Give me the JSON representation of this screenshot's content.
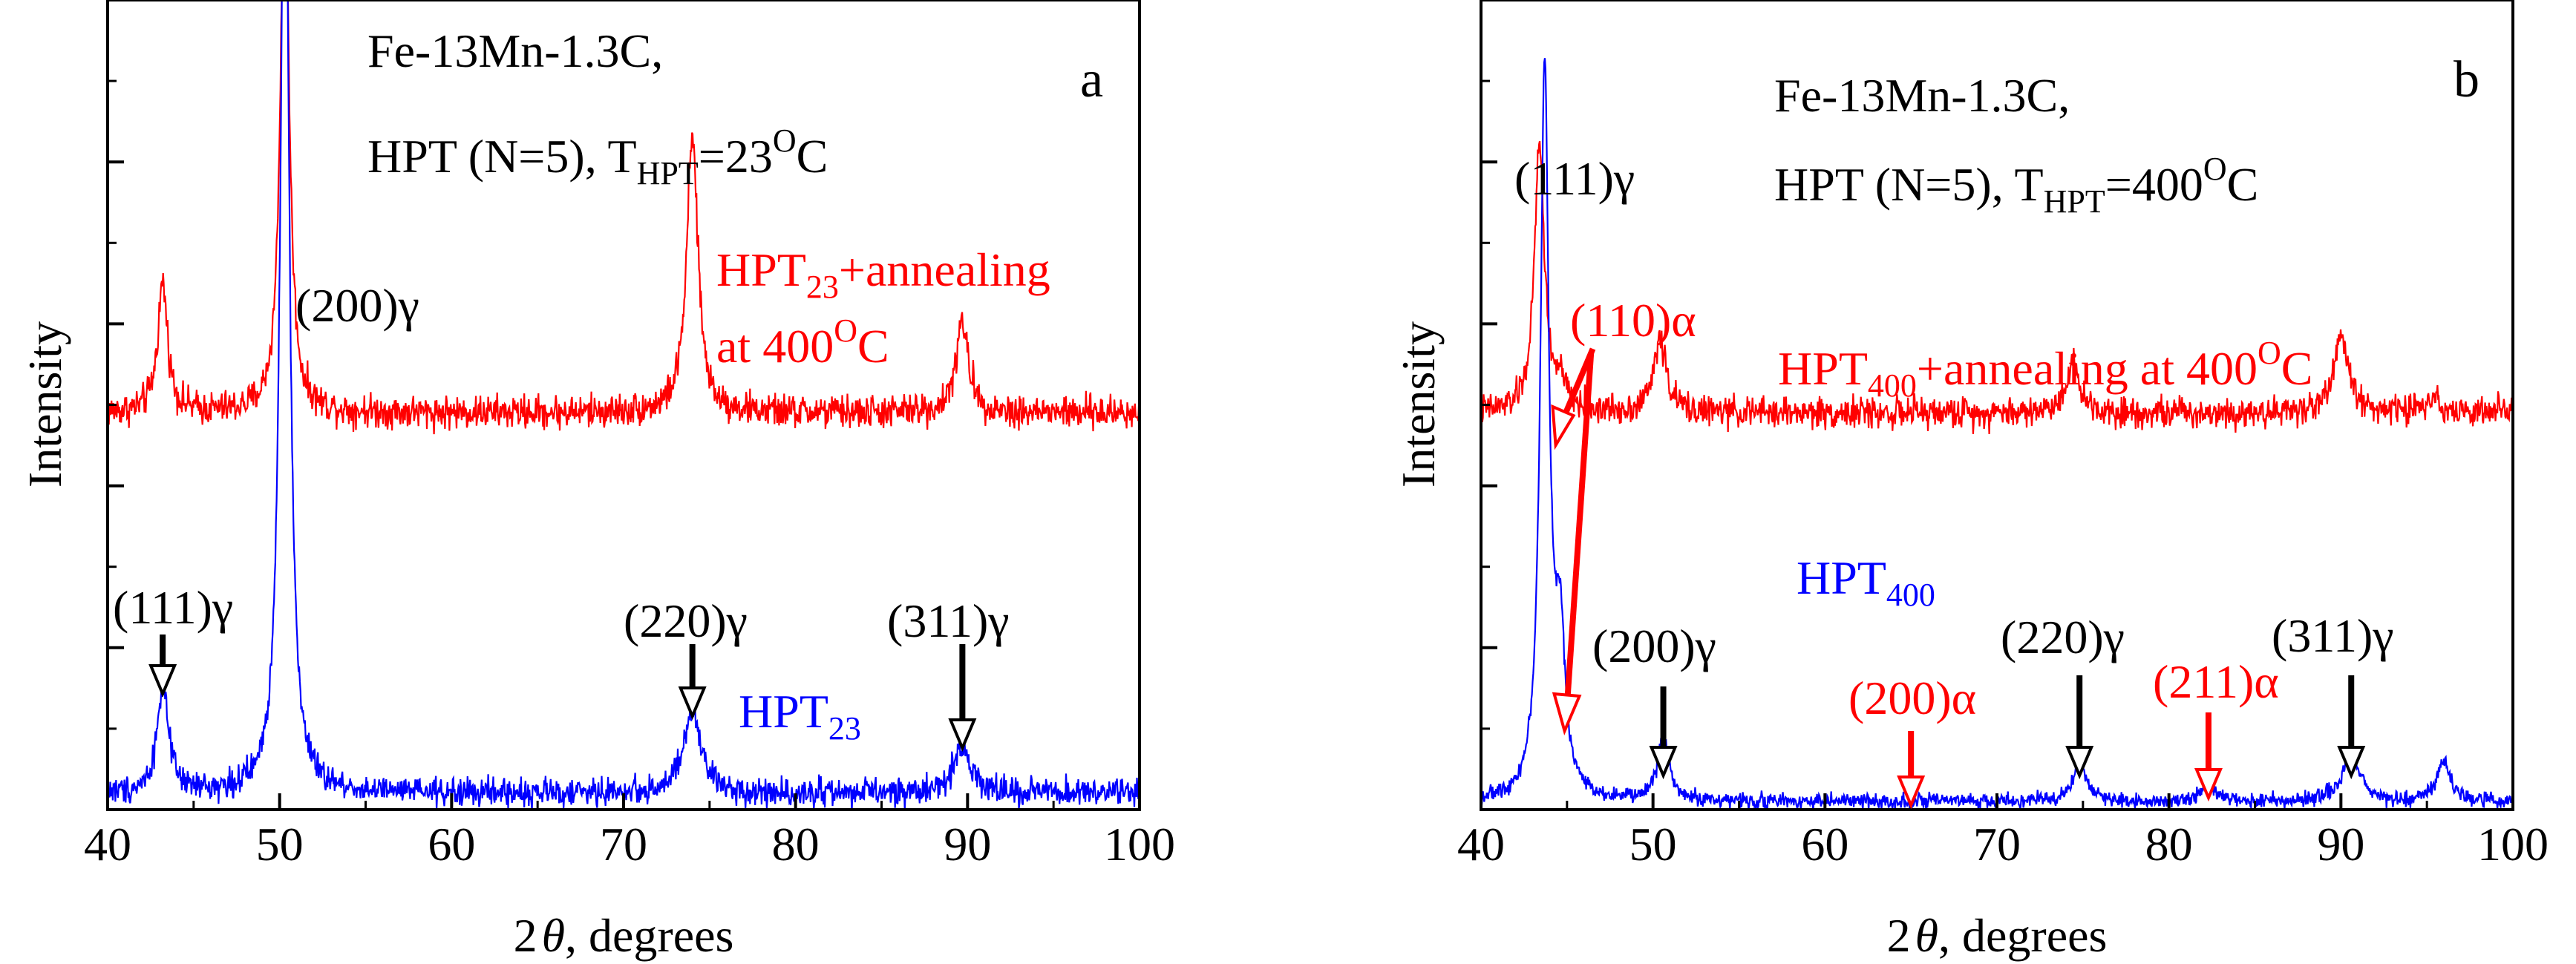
{
  "chart_data": [
    {
      "type": "line",
      "panel_label": "a",
      "xlabel_pre": "2",
      "xlabel_theta": "θ",
      "xlabel_post": ", degrees",
      "ylabel": "Intensity",
      "xlim": [
        40,
        100
      ],
      "ylim": [
        0,
        100
      ],
      "x_ticks": [
        40,
        50,
        60,
        70,
        80,
        90,
        100
      ],
      "title_line1": "Fe-13Mn-1.3C,",
      "title_line2": {
        "pre": "HPT (N=5), T",
        "sub": "HPT",
        "mid": "=23",
        "sup": "O",
        "post": "C"
      },
      "colors": {
        "annealed": "#ff0000",
        "as_hpt": "#0000ff",
        "text": "#000000"
      },
      "series": [
        {
          "name": "HPT23+annealing at 400°C",
          "color": "#ff0000",
          "baseline": 49,
          "noise": 1.3,
          "peaks": [
            {
              "x": 43.2,
              "height": 16,
              "width": 0.35
            },
            {
              "x": 50.3,
              "height": 70,
              "width": 0.3
            },
            {
              "x": 74.0,
              "height": 34,
              "width": 0.4
            },
            {
              "x": 89.7,
              "height": 11,
              "width": 0.45
            }
          ],
          "label": {
            "line1_pre": "HPT",
            "line1_sub": "23",
            "line1_post": "+annealing",
            "line2_pre": "at 400",
            "line2_sup": "O",
            "line2_post": "C"
          }
        },
        {
          "name": "HPT23",
          "color": "#0000ff",
          "baseline": 2,
          "noise": 1.1,
          "peaks": [
            {
              "x": 43.2,
              "height": 13,
              "width": 0.4
            },
            {
              "x": 50.3,
              "height": 130,
              "width": 0.3
            },
            {
              "x": 74.0,
              "height": 10,
              "width": 0.6
            },
            {
              "x": 89.7,
              "height": 6,
              "width": 0.6
            }
          ],
          "label": {
            "pre": "HPT",
            "sub": "23"
          }
        }
      ],
      "annotations": [
        {
          "text": "(111)γ",
          "x": 43.2,
          "color": "#000000"
        },
        {
          "text": "(200)γ",
          "x": 50.3,
          "color": "#000000"
        },
        {
          "text": "(220)γ",
          "x": 74.0,
          "color": "#000000"
        },
        {
          "text": "(311)γ",
          "x": 89.7,
          "color": "#000000"
        }
      ]
    },
    {
      "type": "line",
      "panel_label": "b",
      "xlabel_pre": "2",
      "xlabel_theta": "θ",
      "xlabel_post": ", degrees",
      "ylabel": "Intensity",
      "xlim": [
        40,
        100
      ],
      "ylim": [
        0,
        100
      ],
      "x_ticks": [
        40,
        50,
        60,
        70,
        80,
        90,
        100
      ],
      "title_line1": "Fe-13Mn-1.3C,",
      "title_line2": {
        "pre": "HPT (N=5), T",
        "sub": "HPT",
        "mid": "=400",
        "sup": "O",
        "post": "C"
      },
      "colors": {
        "annealed": "#ff0000",
        "as_hpt": "#0000ff",
        "text": "#000000"
      },
      "series": [
        {
          "name": "HPT400+annealing at 400°C",
          "color": "#ff0000",
          "baseline": 49,
          "noise": 1.2,
          "peaks": [
            {
              "x": 43.4,
              "height": 33,
              "width": 0.35
            },
            {
              "x": 44.6,
              "height": 3,
              "width": 0.4
            },
            {
              "x": 50.4,
              "height": 9,
              "width": 0.45
            },
            {
              "x": 74.4,
              "height": 6,
              "width": 0.5
            },
            {
              "x": 90.0,
              "height": 9,
              "width": 0.55
            },
            {
              "x": 95.3,
              "height": 2,
              "width": 0.5
            }
          ],
          "label": {
            "pre": "HPT",
            "sub": "400",
            "mid": "+annealing at 400",
            "sup": "O",
            "post": "C"
          }
        },
        {
          "name": "HPT400",
          "color": "#0000ff",
          "baseline": 1,
          "noise": 0.6,
          "peaks": [
            {
              "x": 43.7,
              "height": 90,
              "width": 0.3
            },
            {
              "x": 44.6,
              "height": 18,
              "width": 0.35
            },
            {
              "x": 50.6,
              "height": 8,
              "width": 0.4
            },
            {
              "x": 74.8,
              "height": 5,
              "width": 0.45
            },
            {
              "x": 82.3,
              "height": 2,
              "width": 0.5
            },
            {
              "x": 90.6,
              "height": 6,
              "width": 0.6
            },
            {
              "x": 96.0,
              "height": 5,
              "width": 0.45
            }
          ],
          "label": {
            "pre": "HPT",
            "sub": "400"
          }
        }
      ],
      "annotations": [
        {
          "text": "(111)γ",
          "x": 43.5,
          "color": "#000000"
        },
        {
          "text": "(110)α",
          "x": 44.6,
          "color": "#ff0000"
        },
        {
          "text": "(200)γ",
          "x": 50.6,
          "color": "#000000"
        },
        {
          "text": "(200)α",
          "x": 65.0,
          "color": "#ff0000"
        },
        {
          "text": "(220)γ",
          "x": 74.8,
          "color": "#000000"
        },
        {
          "text": "(211)α",
          "x": 82.3,
          "color": "#ff0000"
        },
        {
          "text": "(311)γ",
          "x": 90.6,
          "color": "#000000"
        }
      ]
    }
  ]
}
